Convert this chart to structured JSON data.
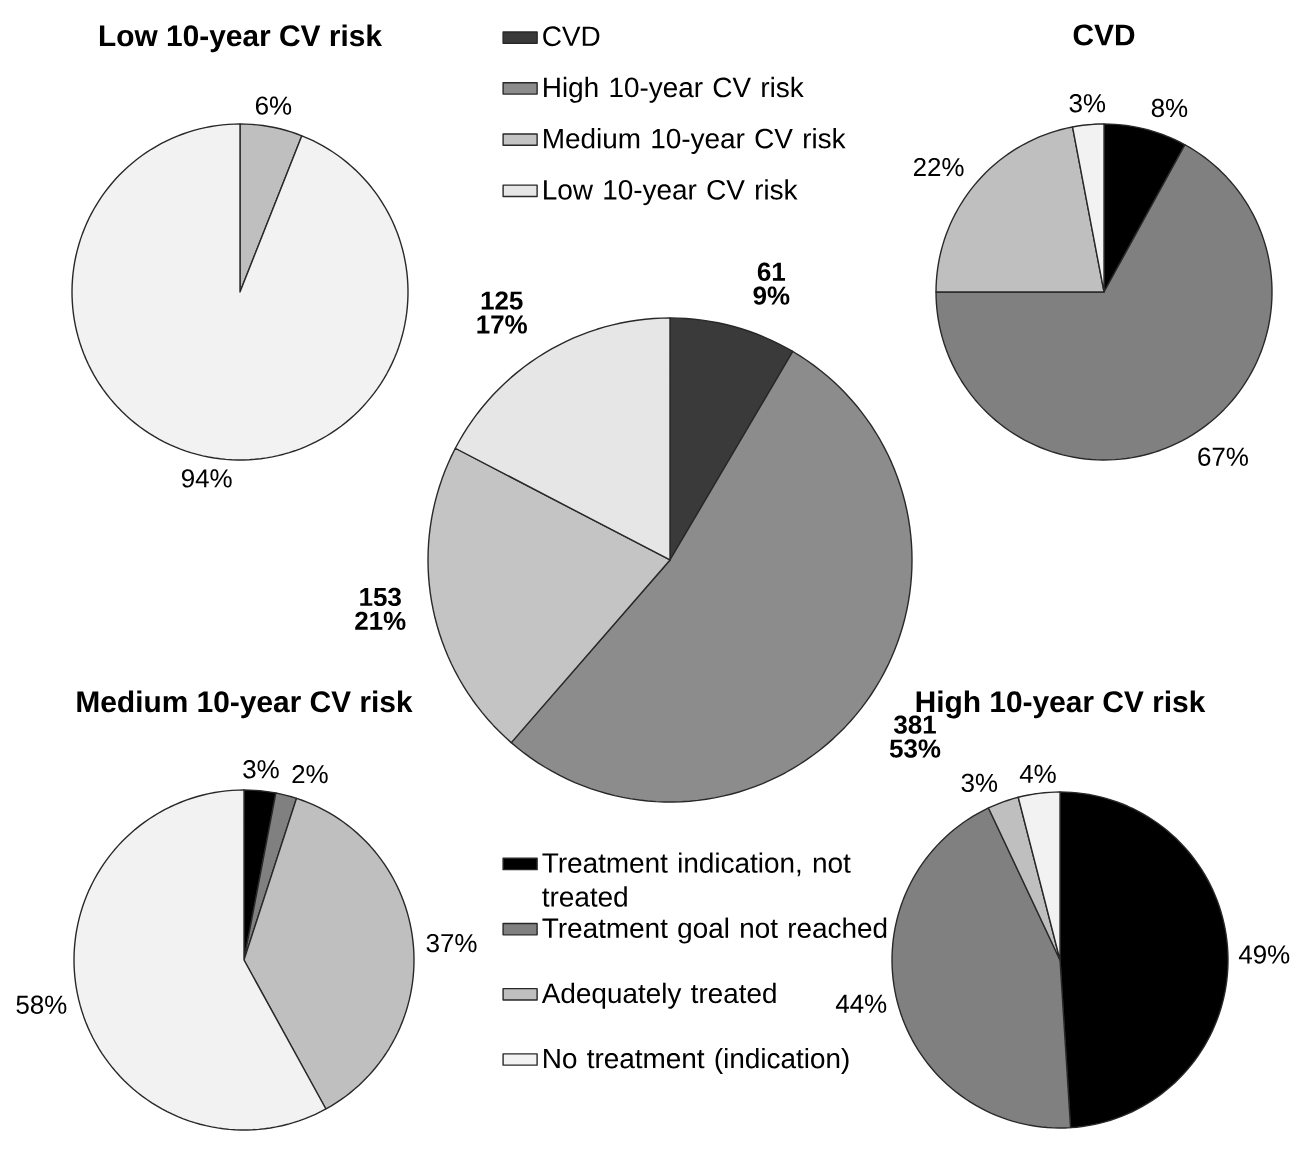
{
  "chart_data": [
    {
      "type": "pie",
      "title": "Low 10-year CV risk",
      "categories": [
        null,
        null,
        null,
        null
      ],
      "values": [
        0,
        0,
        6,
        94
      ],
      "colors": [
        "#000000",
        "#808080",
        "#bfbfbf",
        "#f2f2f2"
      ],
      "value_labels": [
        null,
        null,
        "6%",
        "94%"
      ]
    },
    {
      "type": "pie",
      "categories": [
        "CVD",
        "High 10-year CV risk",
        "Medium 10-year CV risk",
        "Low 10-year CV risk"
      ],
      "values": [
        61,
        381,
        153,
        125
      ],
      "colors": [
        "#3a3a3a",
        "#8c8c8c",
        "#c4c4c4",
        "#e6e6e6"
      ],
      "value_labels": [
        "61 9%",
        "381 53%",
        "153 21%",
        "125 17%"
      ],
      "legend": "top"
    },
    {
      "type": "pie",
      "title": "CVD",
      "categories": [
        null,
        null,
        null,
        null
      ],
      "values": [
        8,
        67,
        22,
        3
      ],
      "colors": [
        "#000000",
        "#808080",
        "#bfbfbf",
        "#f2f2f2"
      ],
      "value_labels": [
        "8%",
        "67%",
        "22%",
        "3%"
      ]
    },
    {
      "type": "pie",
      "title": "Medium 10-year CV risk",
      "categories": [
        "Treatment indication, not treated",
        "Treatment goal not reached",
        "Adequately treated",
        "No treatment (indication)"
      ],
      "values": [
        3,
        2,
        37,
        58
      ],
      "colors": [
        "#000000",
        "#808080",
        "#bfbfbf",
        "#f2f2f2"
      ],
      "value_labels": [
        "3%",
        "2%",
        "37%",
        "58%"
      ],
      "legend": "right"
    },
    {
      "type": "pie",
      "title": "High 10-year CV risk",
      "categories": [
        null,
        null,
        null,
        null
      ],
      "values": [
        49,
        44,
        3,
        4
      ],
      "colors": [
        "#000000",
        "#808080",
        "#bfbfbf",
        "#f2f2f2"
      ],
      "value_labels": [
        "49%",
        "44%",
        "3%",
        "4%"
      ]
    }
  ]
}
